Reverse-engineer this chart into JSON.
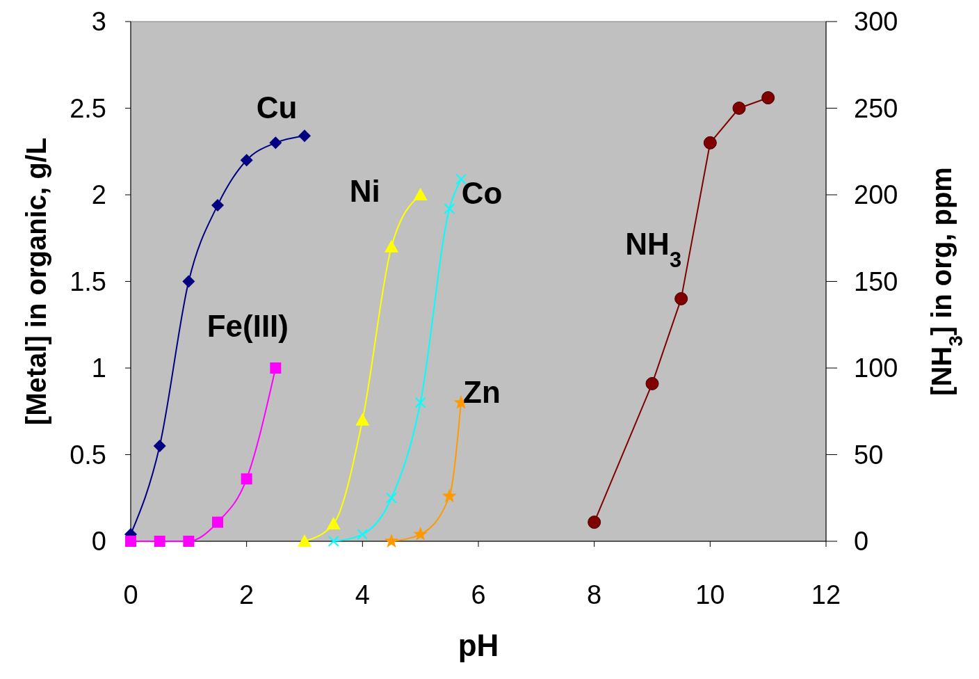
{
  "chart_data": {
    "type": "line",
    "xlabel": "pH",
    "ylabel": "[Metal] in organic, g/L",
    "y2label": "[NH$_{3}$] in org, ppm",
    "xlim": [
      0,
      12
    ],
    "xticks": [
      0,
      2,
      4,
      6,
      8,
      10,
      12
    ],
    "ylim": [
      0,
      3
    ],
    "yticks": [
      0,
      0.5,
      1,
      1.5,
      2,
      2.5,
      3
    ],
    "y2lim": [
      0,
      300
    ],
    "y2ticks": [
      0,
      50,
      100,
      150,
      200,
      250,
      300
    ],
    "grid": false,
    "series": [
      {
        "name": "Cu",
        "color": "#000080",
        "marker": "diamond",
        "x": [
          0,
          0.5,
          1,
          1.5,
          2,
          2.5,
          3
        ],
        "values": [
          0.04,
          0.55,
          1.5,
          1.94,
          2.2,
          2.3,
          2.34
        ]
      },
      {
        "name": "Fe(III)",
        "color": "#ff00ff",
        "marker": "square",
        "x": [
          0,
          0.5,
          1,
          1.5,
          2,
          2.5
        ],
        "values": [
          0,
          0,
          0,
          0.11,
          0.36,
          1.0
        ]
      },
      {
        "name": "Ni",
        "color": "#ffff00",
        "marker": "triangle",
        "x": [
          3,
          3.5,
          4,
          4.5,
          5
        ],
        "values": [
          0,
          0.1,
          0.7,
          1.7,
          2.0
        ]
      },
      {
        "name": "Co",
        "color": "#00ffff",
        "marker": "cross",
        "x": [
          3.5,
          4,
          4.5,
          5,
          5.5,
          5.7
        ],
        "values": [
          0,
          0.04,
          0.25,
          0.8,
          1.92,
          2.09
        ]
      },
      {
        "name": "Zn",
        "color": "#ff9900",
        "marker": "star",
        "x": [
          4.5,
          5,
          5.5,
          5.7
        ],
        "values": [
          0,
          0.04,
          0.26,
          0.8
        ]
      },
      {
        "name": "NH$_{3}$",
        "color": "#800000",
        "marker": "circle",
        "axis": "y2",
        "x": [
          8,
          9,
          9.5,
          10,
          10.5,
          11
        ],
        "values": [
          11,
          91,
          140,
          230,
          250,
          256
        ]
      }
    ]
  }
}
